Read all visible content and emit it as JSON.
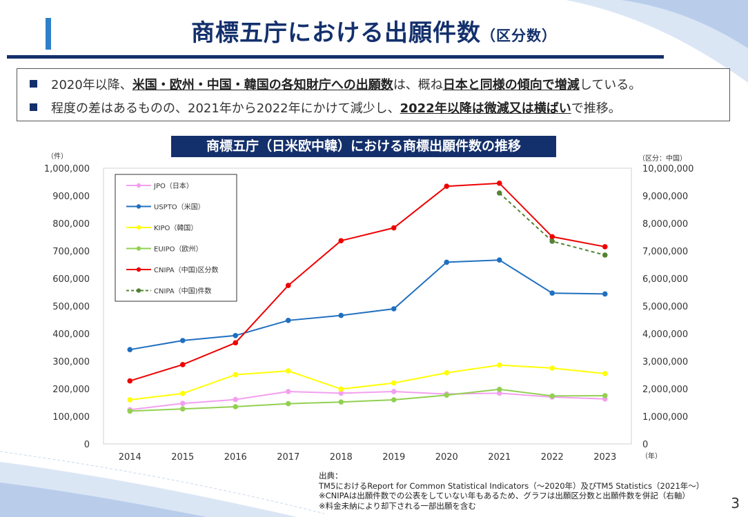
{
  "slide": {
    "title": "商標五庁における出願件数",
    "title_suffix": "（区分数）",
    "page_number": "3",
    "accent_color": "#14306c"
  },
  "bullets": [
    {
      "parts": [
        {
          "text": "2020年以降、",
          "emphasis": false
        },
        {
          "text": "米国・欧州・中国・韓国の各知財庁への出願数",
          "emphasis": true
        },
        {
          "text": "は、概ね",
          "emphasis": false
        },
        {
          "text": "日本と同様の傾向で増減",
          "emphasis": true
        },
        {
          "text": "している。",
          "emphasis": false
        }
      ]
    },
    {
      "parts": [
        {
          "text": "程度の差はあるものの、2021年から2022年にかけて減少し、",
          "emphasis": false
        },
        {
          "text": "2022年以降は微減又は横ばい",
          "emphasis": true
        },
        {
          "text": "で推移。",
          "emphasis": false
        }
      ]
    }
  ],
  "chart_title": "商標五庁（日米欧中韓）における商標出願件数の推移",
  "source": {
    "label": "出典：",
    "lines": [
      "TM5におけるReport for Common Statistical Indicators（～2020年）及びTM5 Statistics（2021年～）",
      "※CNIPAは出願件数での公表をしていない年もあるため、グラフは出願区分数と出願件数を併記（右軸）",
      "※料金未納により却下される一部出願を含む"
    ]
  },
  "chart_data": {
    "type": "line",
    "categories": [
      "2014",
      "2015",
      "2016",
      "2017",
      "2018",
      "2019",
      "2020",
      "2021",
      "2022",
      "2023"
    ],
    "x_unit_label": "（年）",
    "y_left": {
      "unit_label": "（件）",
      "ylim": [
        0,
        1000000
      ],
      "ticks": [
        "0",
        "100,000",
        "200,000",
        "300,000",
        "400,000",
        "500,000",
        "600,000",
        "700,000",
        "800,000",
        "900,000",
        "1,000,000"
      ]
    },
    "y_right": {
      "unit_label": "（区分：中国）",
      "ylim": [
        0,
        10000000
      ],
      "ticks": [
        "0",
        "1,000,000",
        "2,000,000",
        "3,000,000",
        "4,000,000",
        "5,000,000",
        "6,000,000",
        "7,000,000",
        "8,000,000",
        "9,000,000",
        "10,000,000"
      ]
    },
    "grid": false,
    "legend_position": "top-left",
    "series": [
      {
        "name": "JPO（日本）",
        "color": "#f39ff0",
        "axis": "left",
        "dashed": false,
        "values": [
          124000,
          147000,
          161000,
          190000,
          184000,
          190000,
          181000,
          184000,
          170000,
          163000
        ]
      },
      {
        "name": "USPTO（米国）",
        "color": "#1f6fbf",
        "axis": "left",
        "dashed": false,
        "values": [
          342000,
          375000,
          393000,
          448000,
          466000,
          490000,
          659000,
          667000,
          547000,
          544000
        ]
      },
      {
        "name": "KIPO（韓国）",
        "color": "#ffff00",
        "axis": "left",
        "dashed": false,
        "values": [
          160000,
          183000,
          251000,
          265000,
          199000,
          221000,
          258000,
          286000,
          275000,
          255000
        ]
      },
      {
        "name": "EUIPO（欧州）",
        "color": "#92d050",
        "axis": "left",
        "dashed": false,
        "values": [
          119000,
          127000,
          135000,
          146000,
          152000,
          160000,
          177000,
          198000,
          174000,
          175000
        ]
      },
      {
        "name": "CNIPA（中国)区分数",
        "color": "#ee0000",
        "axis": "right",
        "dashed": false,
        "values": [
          2285000,
          2876000,
          3666000,
          5748000,
          7370000,
          7837000,
          9345000,
          9454000,
          7515000,
          7152000
        ]
      },
      {
        "name": "CNIPA（中国)件数",
        "color": "#548235",
        "axis": "right",
        "dashed": true,
        "values": [
          null,
          null,
          null,
          null,
          null,
          null,
          null,
          9100000,
          7350000,
          6850000
        ]
      }
    ]
  }
}
